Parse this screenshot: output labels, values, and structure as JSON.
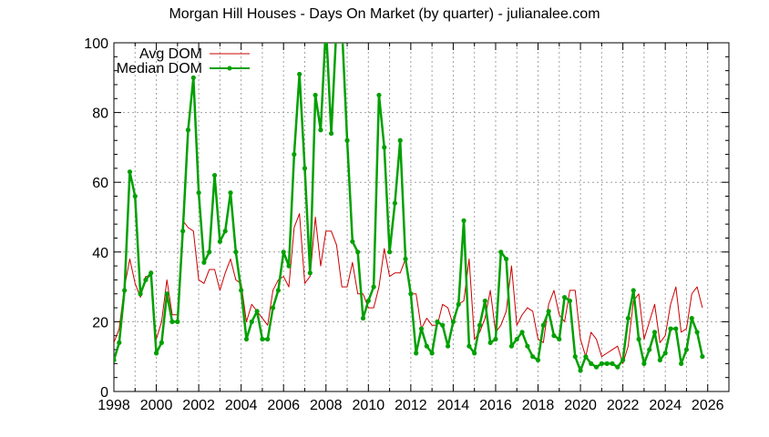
{
  "chart_data": {
    "type": "line",
    "title": "Morgan Hill Houses - Days On Market (by quarter) - julianalee.com",
    "xlabel": "",
    "ylabel": "",
    "xlim": [
      1998,
      2027
    ],
    "ylim": [
      0,
      100
    ],
    "x_ticks": [
      1998,
      2000,
      2002,
      2004,
      2006,
      2008,
      2010,
      2012,
      2014,
      2016,
      2018,
      2020,
      2022,
      2024,
      2026
    ],
    "y_ticks": [
      0,
      20,
      40,
      60,
      80,
      100
    ],
    "grid": true,
    "legend_position": "top-left",
    "x_start": 1998.0,
    "x_step": 0.25,
    "series": [
      {
        "name": "Avg DOM",
        "color": "#cc0000",
        "marker": false,
        "values": [
          14,
          18,
          30,
          38,
          31,
          27,
          33,
          33,
          15,
          20,
          32,
          22,
          22,
          49,
          47,
          46,
          32,
          31,
          35,
          35,
          29,
          34,
          38,
          32,
          31,
          20,
          25,
          23,
          21,
          19,
          29,
          32,
          33,
          30,
          47,
          51,
          31,
          33,
          50,
          36,
          46,
          46,
          42,
          30,
          30,
          37,
          28,
          28,
          24,
          24,
          30,
          41,
          33,
          34,
          34,
          38,
          28,
          28,
          18,
          21,
          19,
          19,
          25,
          24,
          19,
          25,
          26,
          38,
          15,
          17,
          21,
          29,
          17,
          19,
          23,
          36,
          19,
          22,
          24,
          23,
          15,
          14,
          25,
          29,
          22,
          20,
          29,
          29,
          15,
          10,
          17,
          15,
          10,
          11,
          12,
          13,
          8,
          13,
          26,
          28,
          15,
          20,
          25,
          14,
          16,
          25,
          30,
          17,
          18,
          28,
          30,
          24
        ]
      },
      {
        "name": "Median DOM",
        "color": "#00a000",
        "marker": true,
        "values": [
          9,
          14,
          29,
          63,
          56,
          28,
          32,
          34,
          11,
          14,
          28,
          20,
          20,
          46,
          75,
          90,
          57,
          37,
          40,
          62,
          43,
          46,
          57,
          40,
          29,
          15,
          20,
          23,
          15,
          15,
          24,
          29,
          40,
          36,
          68,
          91,
          64,
          34,
          85,
          75,
          105,
          74,
          105,
          105,
          72,
          43,
          40,
          21,
          26,
          30,
          85,
          70,
          40,
          54,
          72,
          38,
          28,
          11,
          18,
          13,
          11,
          20,
          19,
          13,
          20,
          25,
          49,
          13,
          11,
          19,
          26,
          14,
          15,
          40,
          38,
          13,
          15,
          17,
          13,
          10,
          9,
          19,
          23,
          16,
          15,
          27,
          26,
          10,
          6,
          10,
          8,
          7,
          8,
          8,
          8,
          7,
          9,
          21,
          29,
          15,
          8,
          12,
          17,
          9,
          11,
          18,
          18,
          8,
          12,
          21,
          17,
          10
        ]
      }
    ]
  },
  "legend": {
    "avg_label": "Avg DOM",
    "median_label": "Median DOM"
  }
}
